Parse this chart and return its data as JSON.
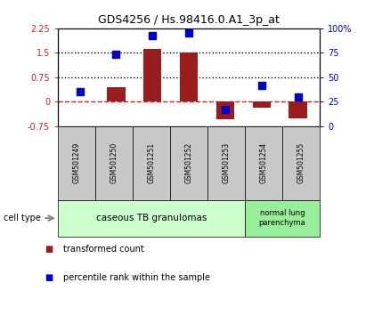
{
  "title": "GDS4256 / Hs.98416.0.A1_3p_at",
  "samples": [
    "GSM501249",
    "GSM501250",
    "GSM501251",
    "GSM501252",
    "GSM501253",
    "GSM501254",
    "GSM501255"
  ],
  "transformed_count": [
    0.0,
    0.45,
    1.62,
    1.52,
    -0.55,
    -0.18,
    -0.52
  ],
  "percentile_rank": [
    35,
    73,
    93,
    95,
    17,
    42,
    30
  ],
  "ylim_left": [
    -0.75,
    2.25
  ],
  "ylim_right": [
    0,
    100
  ],
  "yticks_left": [
    -0.75,
    0,
    0.75,
    1.5,
    2.25
  ],
  "yticks_right": [
    0,
    25,
    50,
    75,
    100
  ],
  "ytick_labels_left": [
    "-0.75",
    "0",
    "0.75",
    "1.5",
    "2.25"
  ],
  "ytick_labels_right": [
    "0",
    "25",
    "50",
    "75",
    "100%"
  ],
  "hlines": [
    0.75,
    1.5
  ],
  "hline_zero": 0.0,
  "bar_color": "#9B1C1C",
  "dot_color": "#0000CC",
  "groups": [
    {
      "label": "caseous TB granulomas",
      "indices": [
        0,
        1,
        2,
        3,
        4
      ],
      "color": "#CCFFCC"
    },
    {
      "label": "normal lung\nparenchyma",
      "indices": [
        5,
        6
      ],
      "color": "#99EE99"
    }
  ],
  "cell_type_label": "cell type",
  "legend_items": [
    {
      "color": "#9B1C1C",
      "label": "transformed count"
    },
    {
      "color": "#0000CC",
      "label": "percentile rank within the sample"
    }
  ],
  "bg_color": "#FFFFFF",
  "bar_width": 0.5,
  "dot_size": 40
}
